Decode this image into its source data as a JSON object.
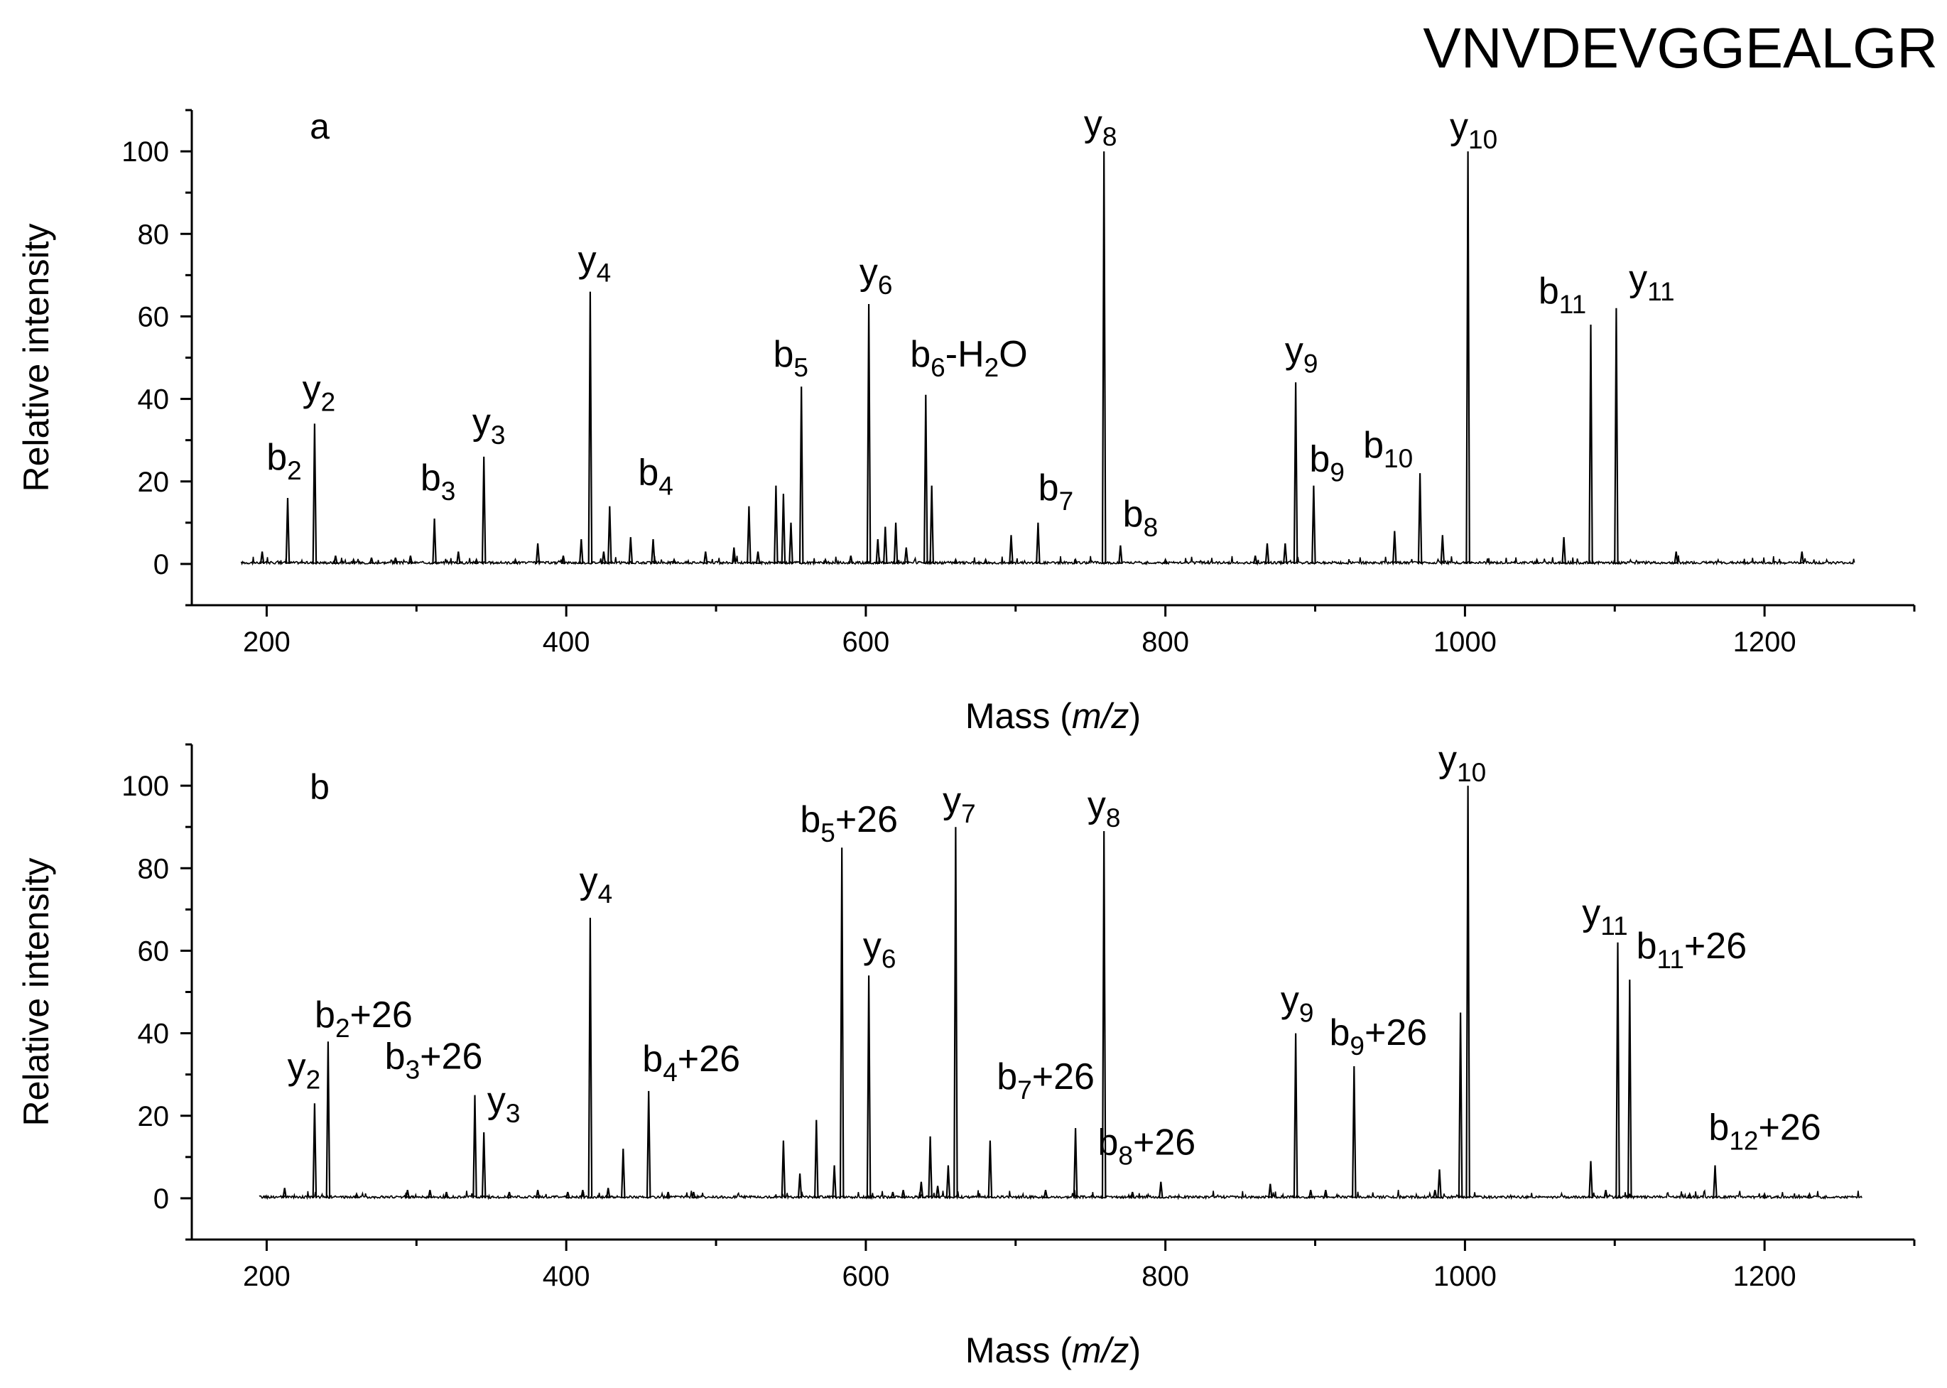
{
  "title": "VNVDEVGGEALGR",
  "chart_data": [
    {
      "type": "line",
      "panel_label": "a",
      "xlabel_prefix": "Mass (",
      "xlabel_italic": "m/z",
      "xlabel_suffix": ")",
      "ylabel": "Relative intensity",
      "xlim": [
        150,
        1300
      ],
      "ylim": [
        -10,
        110
      ],
      "x_ticks": [
        200,
        400,
        600,
        800,
        1000,
        1200
      ],
      "y_ticks": [
        0,
        20,
        40,
        60,
        80,
        100
      ],
      "x_range": [
        183,
        1260
      ],
      "peaks": [
        [
          197,
          3
        ],
        [
          214,
          16
        ],
        [
          232,
          34
        ],
        [
          246,
          2
        ],
        [
          258,
          1
        ],
        [
          270,
          1.5
        ],
        [
          286,
          1.5
        ],
        [
          296,
          2
        ],
        [
          312,
          11
        ],
        [
          328,
          3
        ],
        [
          340,
          1
        ],
        [
          345,
          26
        ],
        [
          366,
          1
        ],
        [
          381,
          5
        ],
        [
          398,
          2
        ],
        [
          410,
          6
        ],
        [
          416,
          66
        ],
        [
          425,
          3
        ],
        [
          429,
          14
        ],
        [
          443,
          6.5
        ],
        [
          458,
          6
        ],
        [
          472,
          1
        ],
        [
          493,
          3
        ],
        [
          512,
          4
        ],
        [
          522,
          14
        ],
        [
          528,
          3
        ],
        [
          540,
          19
        ],
        [
          545,
          17
        ],
        [
          550,
          10
        ],
        [
          557,
          43
        ],
        [
          573,
          1
        ],
        [
          590,
          2
        ],
        [
          602,
          63
        ],
        [
          608,
          6
        ],
        [
          613,
          9
        ],
        [
          620,
          10
        ],
        [
          627,
          4
        ],
        [
          640,
          41
        ],
        [
          644,
          19
        ],
        [
          660,
          1
        ],
        [
          680,
          1
        ],
        [
          697,
          7
        ],
        [
          715,
          10
        ],
        [
          740,
          1
        ],
        [
          759,
          100
        ],
        [
          770,
          4.5
        ],
        [
          800,
          1
        ],
        [
          860,
          2
        ],
        [
          868,
          5
        ],
        [
          880,
          5
        ],
        [
          887,
          44
        ],
        [
          899,
          19
        ],
        [
          953,
          8
        ],
        [
          970,
          22
        ],
        [
          985,
          7
        ],
        [
          1002,
          100
        ],
        [
          1048,
          1
        ],
        [
          1066,
          6.5
        ],
        [
          1084,
          58
        ],
        [
          1101,
          62
        ],
        [
          1141,
          3
        ],
        [
          1225,
          3
        ]
      ],
      "annotations": [
        {
          "ion": "b",
          "sub": "2",
          "suffix": "",
          "mz": 214,
          "intensity": 16
        },
        {
          "ion": "y",
          "sub": "2",
          "suffix": "",
          "mz": 232,
          "intensity": 34
        },
        {
          "ion": "b",
          "sub": "3",
          "suffix": "",
          "mz": 312,
          "intensity": 11
        },
        {
          "ion": "y",
          "sub": "3",
          "suffix": "",
          "mz": 345,
          "intensity": 26
        },
        {
          "ion": "y",
          "sub": "4",
          "suffix": "",
          "mz": 416,
          "intensity": 66
        },
        {
          "ion": "b",
          "sub": "4",
          "suffix": "",
          "mz": 429,
          "intensity": 14
        },
        {
          "ion": "b",
          "sub": "5",
          "suffix": "",
          "mz": 557,
          "intensity": 43
        },
        {
          "ion": "y",
          "sub": "6",
          "suffix": "",
          "mz": 602,
          "intensity": 63
        },
        {
          "ion": "b",
          "sub": "6",
          "suffix": "-H2O",
          "mz": 640,
          "intensity": 41
        },
        {
          "ion": "b",
          "sub": "7",
          "suffix": "",
          "mz": 715,
          "intensity": 10
        },
        {
          "ion": "y",
          "sub": "8",
          "suffix": "",
          "mz": 759,
          "intensity": 100
        },
        {
          "ion": "b",
          "sub": "8",
          "suffix": "",
          "mz": 770,
          "intensity": 4.5
        },
        {
          "ion": "y",
          "sub": "9",
          "suffix": "",
          "mz": 887,
          "intensity": 44
        },
        {
          "ion": "b",
          "sub": "9",
          "suffix": "",
          "mz": 899,
          "intensity": 19
        },
        {
          "ion": "b",
          "sub": "10",
          "suffix": "",
          "mz": 970,
          "intensity": 22
        },
        {
          "ion": "y",
          "sub": "10",
          "suffix": "",
          "mz": 1002,
          "intensity": 100
        },
        {
          "ion": "b",
          "sub": "11",
          "suffix": "",
          "mz": 1084,
          "intensity": 58
        },
        {
          "ion": "y",
          "sub": "11",
          "suffix": "",
          "mz": 1101,
          "intensity": 62
        }
      ]
    },
    {
      "type": "line",
      "panel_label": "b",
      "xlabel_prefix": "Mass (",
      "xlabel_italic": "m/z",
      "xlabel_suffix": ")",
      "ylabel": "Relative intensity",
      "xlim": [
        150,
        1300
      ],
      "ylim": [
        -10,
        110
      ],
      "x_ticks": [
        200,
        400,
        600,
        800,
        1000,
        1200
      ],
      "y_ticks": [
        0,
        20,
        40,
        60,
        80,
        100
      ],
      "x_range": [
        195,
        1265
      ],
      "peaks": [
        [
          212,
          2.5
        ],
        [
          232,
          23
        ],
        [
          241,
          38
        ],
        [
          260,
          1
        ],
        [
          294,
          2
        ],
        [
          309,
          2
        ],
        [
          320,
          1.5
        ],
        [
          339,
          25
        ],
        [
          345,
          16
        ],
        [
          362,
          1.5
        ],
        [
          381,
          2
        ],
        [
          401,
          1.5
        ],
        [
          411,
          2
        ],
        [
          416,
          68
        ],
        [
          428,
          2.5
        ],
        [
          438,
          12
        ],
        [
          455,
          26
        ],
        [
          468,
          1.5
        ],
        [
          485,
          1.5
        ],
        [
          545,
          14
        ],
        [
          556,
          6
        ],
        [
          567,
          19
        ],
        [
          579,
          8
        ],
        [
          584,
          85
        ],
        [
          602,
          54
        ],
        [
          618,
          1.5
        ],
        [
          625,
          2
        ],
        [
          637,
          4
        ],
        [
          643,
          15
        ],
        [
          648,
          3
        ],
        [
          655,
          8
        ],
        [
          660,
          90
        ],
        [
          683,
          14
        ],
        [
          720,
          2
        ],
        [
          740,
          17
        ],
        [
          759,
          89
        ],
        [
          778,
          1.5
        ],
        [
          797,
          4
        ],
        [
          870,
          3.5
        ],
        [
          887,
          40
        ],
        [
          897,
          2
        ],
        [
          907,
          2
        ],
        [
          926,
          32
        ],
        [
          980,
          2
        ],
        [
          983,
          7
        ],
        [
          997,
          45
        ],
        [
          1002,
          100
        ],
        [
          1084,
          9
        ],
        [
          1094,
          2
        ],
        [
          1102,
          62
        ],
        [
          1110,
          53
        ],
        [
          1150,
          1
        ],
        [
          1167,
          8
        ],
        [
          1200,
          1
        ],
        [
          1230,
          1
        ]
      ],
      "annotations": [
        {
          "ion": "y",
          "sub": "2",
          "suffix": "",
          "mz": 232,
          "intensity": 23
        },
        {
          "ion": "b",
          "sub": "2",
          "suffix": "+26",
          "mz": 241,
          "intensity": 38
        },
        {
          "ion": "b",
          "sub": "3",
          "suffix": "+26",
          "mz": 339,
          "intensity": 25
        },
        {
          "ion": "y",
          "sub": "3",
          "suffix": "",
          "mz": 345,
          "intensity": 16
        },
        {
          "ion": "y",
          "sub": "4",
          "suffix": "",
          "mz": 416,
          "intensity": 68
        },
        {
          "ion": "b",
          "sub": "4",
          "suffix": "+26",
          "mz": 455,
          "intensity": 26
        },
        {
          "ion": "b",
          "sub": "5",
          "suffix": "+26",
          "mz": 584,
          "intensity": 85
        },
        {
          "ion": "y",
          "sub": "6",
          "suffix": "",
          "mz": 602,
          "intensity": 54
        },
        {
          "ion": "y",
          "sub": "7",
          "suffix": "",
          "mz": 660,
          "intensity": 90
        },
        {
          "ion": "b",
          "sub": "7",
          "suffix": "+26",
          "mz": 740,
          "intensity": 17
        },
        {
          "ion": "y",
          "sub": "8",
          "suffix": "",
          "mz": 759,
          "intensity": 89
        },
        {
          "ion": "b",
          "sub": "8",
          "suffix": "+26",
          "mz": 797,
          "intensity": 4
        },
        {
          "ion": "y",
          "sub": "9",
          "suffix": "",
          "mz": 887,
          "intensity": 40
        },
        {
          "ion": "b",
          "sub": "9",
          "suffix": "+26",
          "mz": 926,
          "intensity": 32
        },
        {
          "ion": "y",
          "sub": "10",
          "suffix": "",
          "mz": 1002,
          "intensity": 100
        },
        {
          "ion": "y",
          "sub": "11",
          "suffix": "",
          "mz": 1102,
          "intensity": 62
        },
        {
          "ion": "b",
          "sub": "11",
          "suffix": "+26",
          "mz": 1110,
          "intensity": 53
        },
        {
          "ion": "b",
          "sub": "12",
          "suffix": "+26",
          "mz": 1167,
          "intensity": 8
        }
      ]
    }
  ]
}
